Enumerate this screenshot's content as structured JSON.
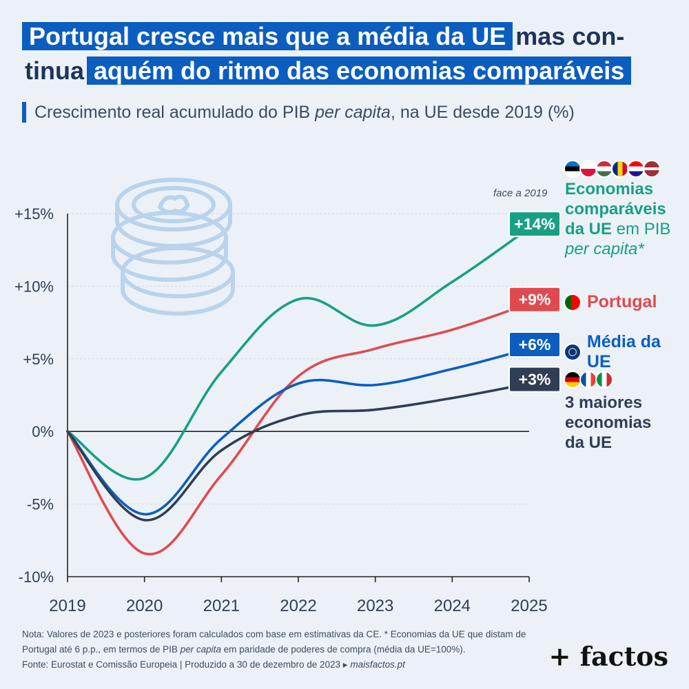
{
  "title": {
    "part1": "Portugal cresce mais que a média da UE",
    "part2": "mas con-",
    "part3": "tinua",
    "part4": "aquém do ritmo das economias comparáveis"
  },
  "subtitle": {
    "text1": "Crescimento real acumulado do PIB ",
    "text2": "per capita",
    "text3": ", na UE desde 2019 (%)"
  },
  "face_note": "face a 2019",
  "legend": {
    "comparable": {
      "l1": "Economias",
      "l2": "comparáveis",
      "l3a": "da UE",
      "l3b": " em PIB",
      "l4": "per capita*"
    },
    "portugal": "Portugal",
    "eu_avg": "Média da UE",
    "big3": {
      "l1": "3 maiores",
      "l2": "economias",
      "l3": "da UE"
    }
  },
  "colors": {
    "comparable": "#17a085",
    "portugal": "#e04a4f",
    "eu_avg": "#0b5ec0",
    "big3": "#2f3e55"
  },
  "chart_data": {
    "type": "line",
    "x": [
      2019,
      2020,
      2021,
      2022,
      2023,
      2024,
      2025
    ],
    "ylim": [
      -10,
      15
    ],
    "yticks": [
      "+15%",
      "+10%",
      "+5%",
      "0%",
      "-5%",
      "-10%"
    ],
    "ytick_values": [
      15,
      10,
      5,
      0,
      -5,
      -10
    ],
    "xticks": [
      "2019",
      "2020",
      "2021",
      "2022",
      "2023",
      "2024",
      "2025"
    ],
    "series": [
      {
        "name": "Economias comparáveis da UE em PIB per capita*",
        "key": "comparable",
        "end_label": "+14%",
        "values": [
          0,
          -3.2,
          4.1,
          9.1,
          7.3,
          10.3,
          14.0
        ]
      },
      {
        "name": "Portugal",
        "key": "portugal",
        "end_label": "+9%",
        "values": [
          0,
          -8.4,
          -3.0,
          3.8,
          5.7,
          7.0,
          8.8
        ]
      },
      {
        "name": "Média da UE",
        "key": "eu_avg",
        "end_label": "+6%",
        "values": [
          0,
          -5.7,
          -0.5,
          3.3,
          3.2,
          4.3,
          5.7
        ]
      },
      {
        "name": "3 maiores economias da UE",
        "key": "big3",
        "end_label": "+3%",
        "values": [
          0,
          -6.1,
          -1.3,
          1.1,
          1.5,
          2.3,
          3.3
        ]
      }
    ]
  },
  "footnote": {
    "l1": "Nota: Valores de 2023 e posteriores foram calculados com base em estimativas da CE. * Economias da UE que distam de",
    "l2a": "Portugal até 6 p.p., em termos de PIB ",
    "l2b": "per capita",
    "l2c": " em paridade de poderes de compra (média da UE=100%).",
    "l3a": "Fonte: Eurostat e Comissão Europeia | Produzido a 30 de dezembro de 2023 ▸ ",
    "l3b": "maisfactos.pt"
  },
  "brand": "+ factos"
}
